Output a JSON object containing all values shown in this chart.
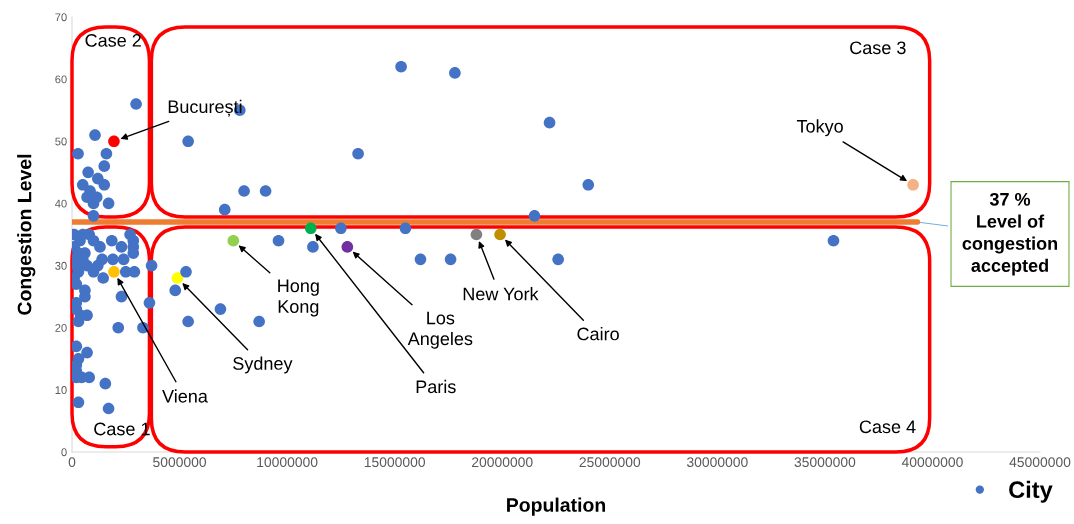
{
  "chart_data": {
    "type": "scatter",
    "xlabel": "Population",
    "ylabel": "Congestion Level",
    "xlim": [
      0,
      45000000
    ],
    "xticks": [
      0,
      5000000,
      10000000,
      15000000,
      20000000,
      25000000,
      30000000,
      35000000,
      40000000,
      45000000
    ],
    "ylim": [
      0,
      70
    ],
    "yticks": [
      0,
      10,
      20,
      30,
      40,
      50,
      60,
      70
    ],
    "grid": false,
    "legend": "bottom right",
    "marker": "circle",
    "series": [
      {
        "name": "City",
        "color": "#4472c4",
        "x": [
          2980000,
          1070000,
          1950000,
          280000,
          1600000,
          1500000,
          750000,
          1200000,
          1500000,
          500000,
          840000,
          700000,
          1150000,
          1000000,
          1700000,
          1000000,
          5400000,
          7800000,
          8000000,
          9000000,
          7100000,
          13300000,
          15300000,
          17800000,
          22200000,
          24000000,
          21500000,
          39100000,
          7500000,
          9600000,
          11100000,
          11200000,
          12500000,
          12800000,
          15500000,
          16200000,
          17600000,
          18800000,
          19900000,
          22600000,
          35400000,
          4900000,
          5300000,
          4800000,
          6900000,
          5400000,
          8700000,
          3700000,
          3600000,
          3300000,
          370000,
          1850000,
          2700000,
          2850000,
          2300000,
          2850000,
          1300000,
          600000,
          2850000,
          1400000,
          2400000,
          1900000,
          1950000,
          2500000,
          2900000,
          1000000,
          1450000,
          2300000,
          2150000,
          600000,
          600000,
          200000,
          700000,
          300000,
          200000,
          700000,
          300000,
          200000,
          200000,
          200000,
          450000,
          800000,
          1550000,
          300000,
          1700000,
          100000,
          100000,
          300000,
          100000,
          200000,
          300000,
          100000,
          200000,
          500000,
          800000,
          1000000,
          500000,
          700000,
          1200000,
          400000,
          200000
        ],
        "values": [
          56,
          51,
          50,
          48,
          48,
          46,
          45,
          44,
          43,
          43,
          42,
          41,
          41,
          40,
          40,
          38,
          50,
          55,
          42,
          42,
          39,
          48,
          62,
          61,
          53,
          43,
          38,
          43,
          34,
          34,
          36,
          33,
          36,
          33,
          36,
          31,
          31,
          35,
          35,
          31,
          34,
          28,
          29,
          26,
          23,
          21,
          21,
          30,
          24,
          20,
          34,
          34,
          35,
          34,
          33,
          33,
          33,
          32,
          32,
          31,
          31,
          31,
          29,
          29,
          29,
          29,
          28,
          25,
          20,
          26,
          25,
          23,
          22,
          21,
          17,
          16,
          15,
          14,
          13,
          12,
          12,
          12,
          11,
          8,
          7,
          35,
          33,
          32,
          31,
          30,
          29,
          28,
          27,
          35,
          35,
          34,
          31,
          30,
          30,
          22,
          24
        ],
        "colors": [
          "#4472c4",
          "#4472c4",
          "#ff0000",
          "#4472c4",
          "#4472c4",
          "#4472c4",
          "#4472c4",
          "#4472c4",
          "#4472c4",
          "#4472c4",
          "#4472c4",
          "#4472c4",
          "#4472c4",
          "#4472c4",
          "#4472c4",
          "#4472c4",
          "#4472c4",
          "#4472c4",
          "#4472c4",
          "#4472c4",
          "#4472c4",
          "#4472c4",
          "#4472c4",
          "#4472c4",
          "#4472c4",
          "#4472c4",
          "#4472c4",
          "#f4b183",
          "#92d050",
          "#4472c4",
          "#00b050",
          "#4472c4",
          "#4472c4",
          "#7030a0",
          "#4472c4",
          "#4472c4",
          "#4472c4",
          "#808080",
          "#bf8f00",
          "#4472c4",
          "#4472c4",
          "#ffff00",
          "#4472c4",
          "#4472c4",
          "#4472c4",
          "#4472c4",
          "#4472c4",
          "#4472c4",
          "#4472c4",
          "#4472c4",
          "#4472c4",
          "#4472c4",
          "#4472c4",
          "#4472c4",
          "#4472c4",
          "#4472c4",
          "#4472c4",
          "#4472c4",
          "#4472c4",
          "#4472c4",
          "#4472c4",
          "#4472c4",
          "#ffc000",
          "#4472c4",
          "#4472c4",
          "#4472c4",
          "#4472c4",
          "#4472c4",
          "#4472c4",
          "#4472c4",
          "#4472c4",
          "#4472c4",
          "#4472c4",
          "#4472c4",
          "#4472c4",
          "#4472c4",
          "#4472c4",
          "#4472c4",
          "#4472c4",
          "#4472c4",
          "#4472c4",
          "#4472c4",
          "#4472c4",
          "#4472c4",
          "#4472c4",
          "#4472c4",
          "#4472c4",
          "#4472c4",
          "#4472c4",
          "#4472c4",
          "#4472c4",
          "#4472c4",
          "#4472c4",
          "#4472c4",
          "#4472c4",
          "#4472c4",
          "#4472c4",
          "#4472c4",
          "#4472c4",
          "#4472c4",
          "#4472c4"
        ]
      }
    ],
    "ref_lines": [
      {
        "axis": "y",
        "value": 37,
        "label": "37 % Level of congestion accepted",
        "color": "#ed7d31"
      }
    ],
    "annotations": [
      {
        "text": "București",
        "x": 1950000,
        "y": 50
      },
      {
        "text": "Viena",
        "x": 1950000,
        "y": 29
      },
      {
        "text": "Sydney",
        "x": 4900000,
        "y": 28
      },
      {
        "text": "Hong Kong",
        "x": 7500000,
        "y": 34
      },
      {
        "text": "Paris",
        "x": 11100000,
        "y": 36
      },
      {
        "text": "Los Angeles",
        "x": 12800000,
        "y": 33
      },
      {
        "text": "New York",
        "x": 18800000,
        "y": 35
      },
      {
        "text": "Cairo",
        "x": 19900000,
        "y": 35
      },
      {
        "text": "Tokyo",
        "x": 39100000,
        "y": 43
      },
      "Case 1",
      "Case 2",
      "Case 3",
      "Case 4"
    ]
  }
}
